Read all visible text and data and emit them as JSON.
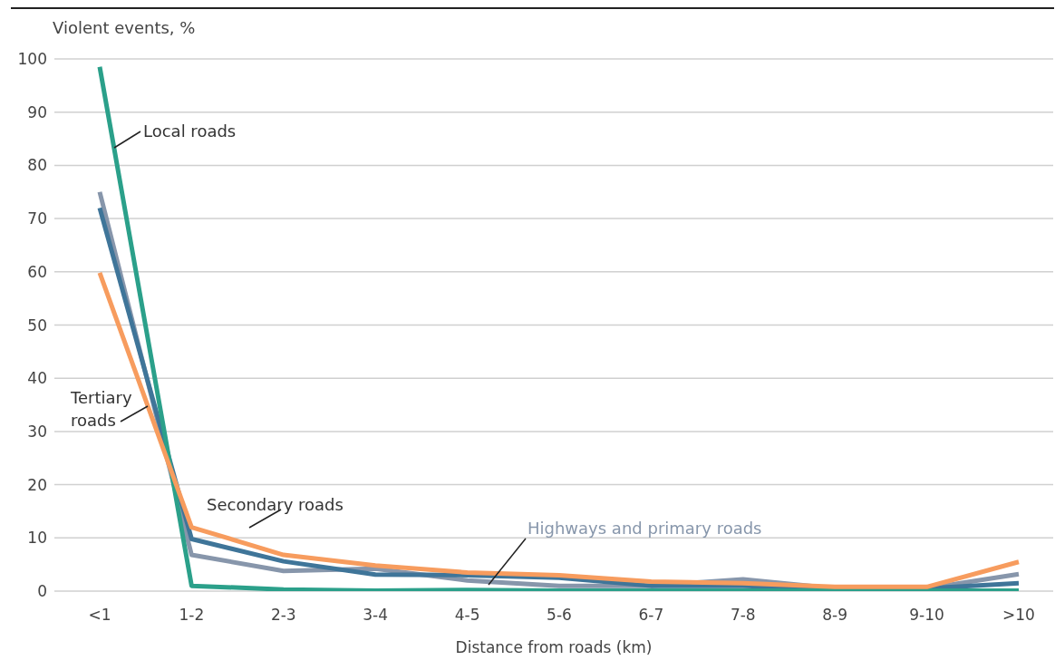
{
  "chart_data": {
    "type": "line",
    "ylabel": "Violent events, %",
    "xlabel": "Distance from roads (km)",
    "categories": [
      "<1",
      "1-2",
      "2-3",
      "3-4",
      "4-5",
      "5-6",
      "6-7",
      "7-8",
      "8-9",
      "9-10",
      ">10"
    ],
    "series": [
      {
        "name": "Highways and primary roads",
        "color": "#8796ab",
        "values": [
          75,
          6.8,
          3.8,
          4.2,
          2,
          1,
          1,
          2.2,
          0.5,
          0.5,
          3.2
        ]
      },
      {
        "name": "Secondary roads",
        "color": "#3f7599",
        "values": [
          72,
          9.8,
          5.6,
          3.1,
          3,
          2.5,
          1,
          1,
          0.6,
          0.5,
          1.5
        ]
      },
      {
        "name": "Local roads",
        "color": "#2ba08a",
        "values": [
          98.5,
          1,
          0.3,
          0.1,
          0.2,
          0.1,
          0.1,
          0.1,
          0.1,
          0.1,
          0.1
        ]
      },
      {
        "name": "Tertiary roads",
        "color": "#f79c5e",
        "values": [
          59.8,
          12,
          6.8,
          4.8,
          3.5,
          3,
          1.8,
          1.5,
          0.8,
          0.8,
          5.5
        ]
      }
    ],
    "ylim": [
      0,
      100
    ],
    "yticks": [
      0,
      10,
      20,
      30,
      40,
      50,
      60,
      70,
      80,
      90,
      100
    ],
    "grid": "y",
    "legend": false,
    "marker": "none",
    "line_style": "solid"
  }
}
